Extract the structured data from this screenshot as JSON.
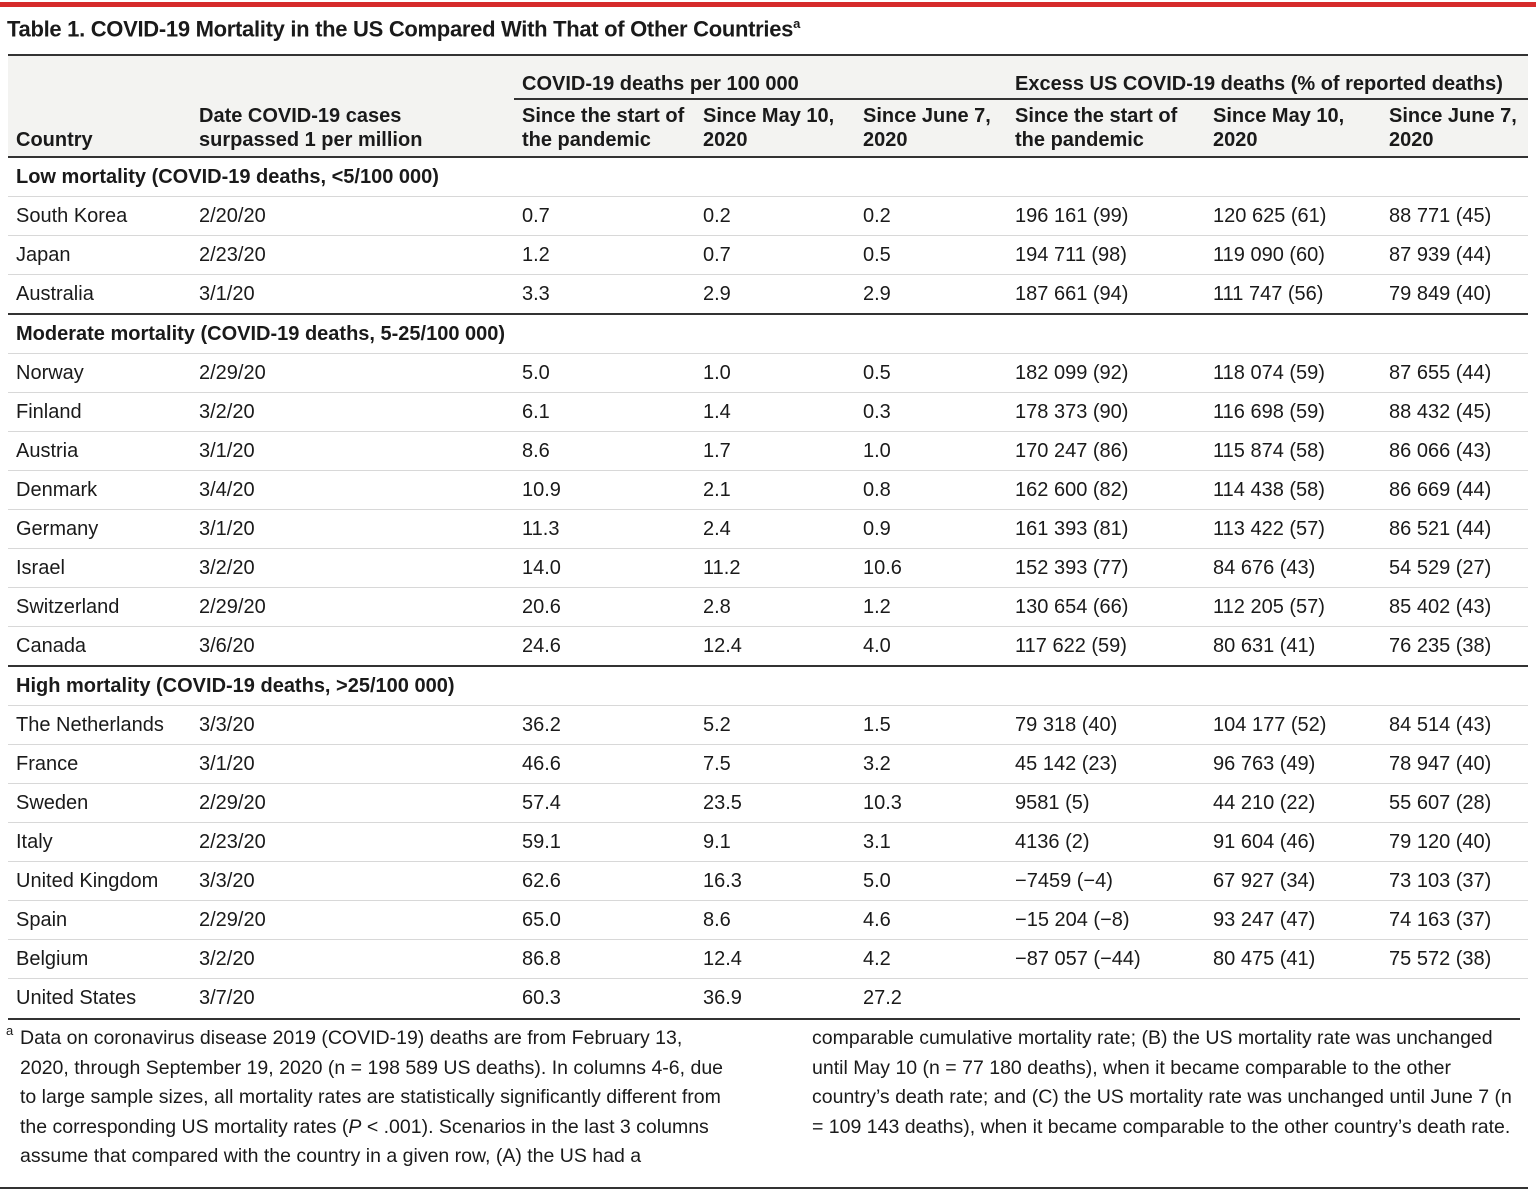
{
  "title": "Table 1. COVID-19 Mortality in the US Compared With That of Other Countries",
  "title_note": "a",
  "table": {
    "group_headers": [
      "COVID-19 deaths per 100 000",
      "Excess US COVID-19 deaths (% of reported deaths)"
    ],
    "columns": [
      "Country",
      "Date COVID-19 cases surpassed 1 per million",
      "Since the start of the pandemic",
      "Since May 10, 2020",
      "Since June 7, 2020",
      "Since the start of the pandemic",
      "Since May 10, 2020",
      "Since June 7, 2020"
    ],
    "sections": [
      {
        "label": "Low mortality (COVID-19 deaths, <5/100 000)",
        "rows": [
          [
            "South Korea",
            "2/20/20",
            "0.7",
            "0.2",
            "0.2",
            "196 161 (99)",
            "120 625 (61)",
            "88 771 (45)"
          ],
          [
            "Japan",
            "2/23/20",
            "1.2",
            "0.7",
            "0.5",
            "194 711 (98)",
            "119 090 (60)",
            "87 939 (44)"
          ],
          [
            "Australia",
            "3/1/20",
            "3.3",
            "2.9",
            "2.9",
            "187 661 (94)",
            "111 747 (56)",
            "79 849 (40)"
          ]
        ]
      },
      {
        "label": "Moderate mortality (COVID-19 deaths, 5-25/100 000)",
        "rows": [
          [
            "Norway",
            "2/29/20",
            "5.0",
            "1.0",
            "0.5",
            "182 099 (92)",
            "118 074 (59)",
            "87 655 (44)"
          ],
          [
            "Finland",
            "3/2/20",
            "6.1",
            "1.4",
            "0.3",
            "178 373 (90)",
            "116 698 (59)",
            "88 432 (45)"
          ],
          [
            "Austria",
            "3/1/20",
            "8.6",
            "1.7",
            "1.0",
            "170 247 (86)",
            "115 874 (58)",
            "86 066 (43)"
          ],
          [
            "Denmark",
            "3/4/20",
            "10.9",
            "2.1",
            "0.8",
            "162 600 (82)",
            "114 438 (58)",
            "86 669 (44)"
          ],
          [
            "Germany",
            "3/1/20",
            "11.3",
            "2.4",
            "0.9",
            "161 393 (81)",
            "113 422 (57)",
            "86 521 (44)"
          ],
          [
            "Israel",
            "3/2/20",
            "14.0",
            "11.2",
            "10.6",
            "152 393 (77)",
            "84 676 (43)",
            "54 529 (27)"
          ],
          [
            "Switzerland",
            "2/29/20",
            "20.6",
            "2.8",
            "1.2",
            "130 654 (66)",
            "112 205 (57)",
            "85 402 (43)"
          ],
          [
            "Canada",
            "3/6/20",
            "24.6",
            "12.4",
            "4.0",
            "117 622 (59)",
            "80 631 (41)",
            "76 235 (38)"
          ]
        ]
      },
      {
        "label": "High mortality (COVID-19 deaths, >25/100 000)",
        "rows": [
          [
            "The Netherlands",
            "3/3/20",
            "36.2",
            "5.2",
            "1.5",
            "79 318 (40)",
            "104 177 (52)",
            "84 514 (43)"
          ],
          [
            "France",
            "3/1/20",
            "46.6",
            "7.5",
            "3.2",
            "45 142 (23)",
            "96 763 (49)",
            "78 947 (40)"
          ],
          [
            "Sweden",
            "2/29/20",
            "57.4",
            "23.5",
            "10.3",
            "9581 (5)",
            "44 210 (22)",
            "55 607 (28)"
          ],
          [
            "Italy",
            "2/23/20",
            "59.1",
            "9.1",
            "3.1",
            "4136 (2)",
            "91 604 (46)",
            "79 120 (40)"
          ],
          [
            "United Kingdom",
            "3/3/20",
            "62.6",
            "16.3",
            "5.0",
            "−7459 (−4)",
            "67 927 (34)",
            "73 103 (37)"
          ],
          [
            "Spain",
            "2/29/20",
            "65.0",
            "8.6",
            "4.6",
            "−15 204 (−8)",
            "93 247 (47)",
            "74 163 (37)"
          ],
          [
            "Belgium",
            "3/2/20",
            "86.8",
            "12.4",
            "4.2",
            "−87 057 (−44)",
            "80 475 (41)",
            "75 572 (38)"
          ],
          [
            "United States",
            "3/7/20",
            "60.3",
            "36.9",
            "27.2"
          ]
        ]
      }
    ]
  },
  "footnote": {
    "marker": "a",
    "parts": [
      "Data on coronavirus disease 2019 (COVID-19) deaths are from February 13, 2020, through September 19, 2020 (n = 198 589 US deaths). In columns 4-6, due to large sample sizes, all mortality rates are statistically significantly different from the corresponding US mortality rates (",
      "P",
      " < .001). Scenarios in the last 3 columns assume that compared with the country in a given row, (A) the US had a comparable cumulative mortality rate; (B) the US mortality rate was unchanged until May 10 (n = 77 180 deaths), when it became comparable to the other country’s death rate; and (C) the US mortality rate was unchanged until June 7 (n = 109 143 deaths), when it became comparable to the other country’s death rate."
    ]
  }
}
